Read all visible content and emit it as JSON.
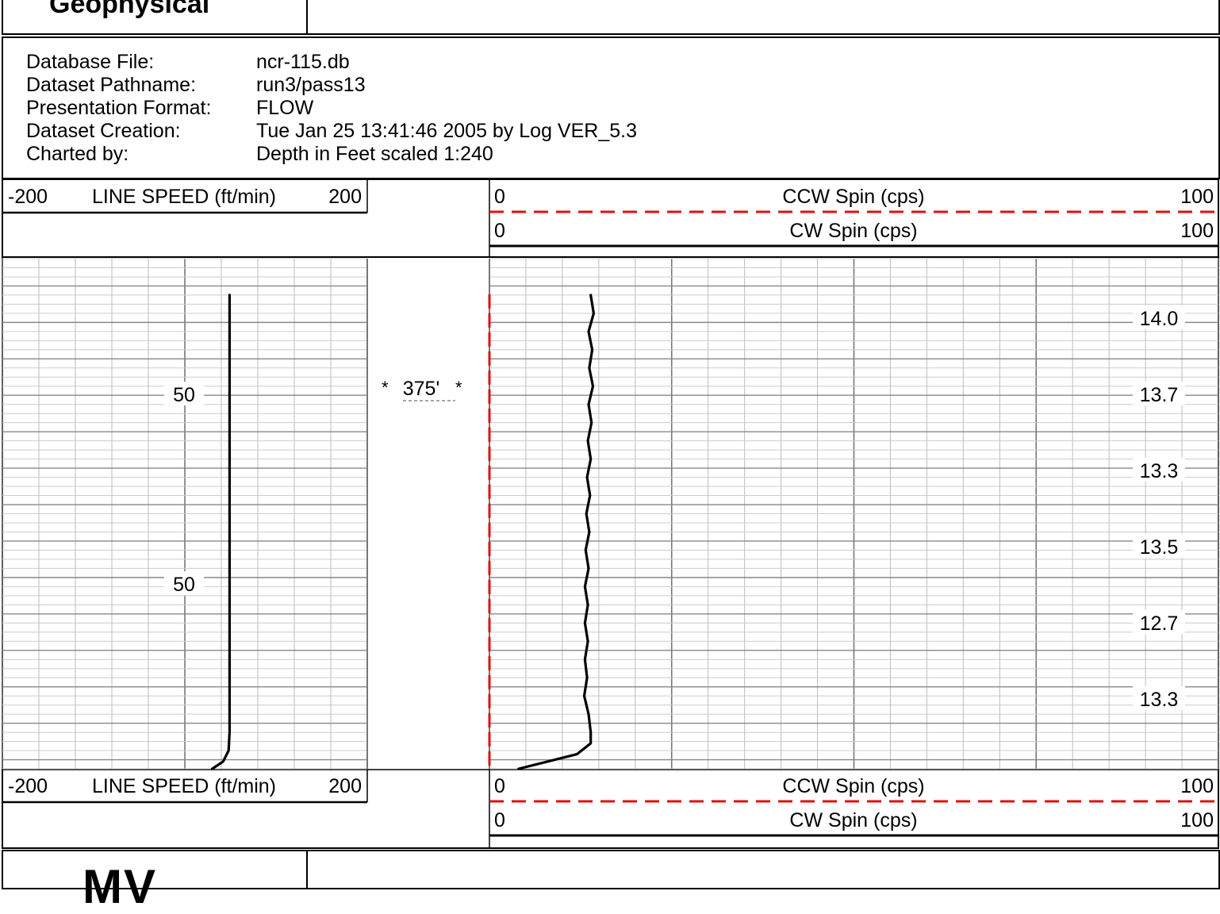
{
  "header": {
    "company": "Geophysical"
  },
  "info": [
    {
      "label": "Database File:",
      "value": "ncr-115.db"
    },
    {
      "label": "Dataset Pathname:",
      "value": "run3/pass13"
    },
    {
      "label": "Presentation Format:",
      "value": "FLOW"
    },
    {
      "label": "Dataset Creation:",
      "value": "Tue Jan 25 13:41:46 2005 by Log VER_5.3"
    },
    {
      "label": "Charted by:",
      "value": "Depth in Feet scaled 1:240"
    }
  ],
  "tracks": {
    "left": {
      "name": "LINE SPEED (ft/min)",
      "min": "-200",
      "max": "200"
    },
    "right_ccw": {
      "name": "CCW Spin (cps)",
      "min": "0",
      "max": "100",
      "color": "#e01010"
    },
    "right_cw": {
      "name": "CW Spin (cps)",
      "min": "0",
      "max": "100",
      "color": "#000000"
    }
  },
  "depth_marker": "375'",
  "footer": {
    "logo": "MV"
  },
  "chart_data": {
    "type": "line",
    "y_axis": "depth (ft)",
    "depth_range": [
      368,
      382
    ],
    "track1_labels": [
      "50",
      "50"
    ],
    "track3_labels": [
      "14.0",
      "13.7",
      "13.3",
      "13.5",
      "12.7",
      "13.3"
    ],
    "series": [
      {
        "name": "LINE SPEED (ft/min)",
        "xlim": [
          -200,
          200
        ],
        "color": "#000000",
        "depth": [
          369.0,
          370.0,
          371.0,
          372.0,
          373.0,
          374.0,
          375.0,
          376.0,
          377.0,
          378.0,
          379.0,
          380.0,
          381.0,
          381.5,
          381.8,
          382.0
        ],
        "values": [
          49,
          49,
          49,
          49,
          49,
          49,
          49,
          49,
          49,
          49,
          49,
          49,
          49,
          48,
          42,
          30
        ]
      },
      {
        "name": "CW Spin (cps)",
        "xlim": [
          0,
          100
        ],
        "color": "#000000",
        "depth": [
          369.0,
          369.5,
          370.0,
          370.5,
          371.0,
          371.5,
          372.0,
          372.5,
          373.0,
          373.5,
          374.0,
          374.5,
          375.0,
          375.5,
          376.0,
          376.5,
          377.0,
          377.5,
          378.0,
          378.5,
          379.0,
          379.5,
          380.0,
          380.5,
          381.0,
          381.3,
          381.6,
          381.8,
          382.0
        ],
        "values": [
          13.9,
          14.3,
          13.6,
          14.1,
          13.7,
          14.2,
          13.6,
          14.0,
          13.5,
          13.9,
          13.4,
          13.8,
          13.3,
          13.7,
          13.2,
          13.6,
          13.1,
          13.5,
          13.1,
          13.5,
          13.1,
          13.4,
          13.0,
          13.6,
          13.9,
          13.9,
          12.0,
          8.0,
          4.0
        ]
      },
      {
        "name": "CCW Spin (cps)",
        "xlim": [
          0,
          100
        ],
        "color": "#e01010",
        "depth": [
          369.0,
          382.0
        ],
        "values": [
          0,
          0
        ]
      }
    ]
  }
}
